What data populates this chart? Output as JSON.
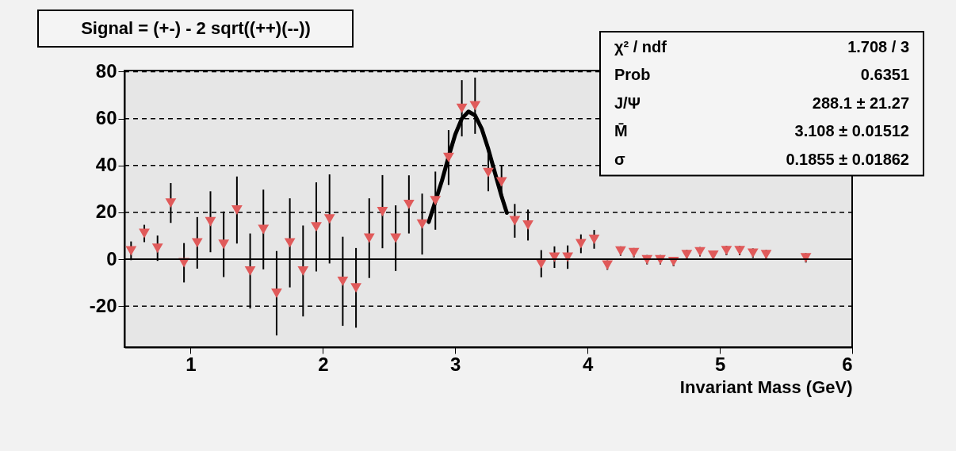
{
  "chart_data": {
    "type": "scatter",
    "title": "Signal = (+-) - 2 sqrt((++)(--))",
    "xlabel": "Invariant Mass (GeV)",
    "xlim": [
      0.5,
      6
    ],
    "xticks": [
      1,
      2,
      3,
      4,
      5,
      6
    ],
    "ylim": [
      -37.5,
      80.5
    ],
    "yticks": [
      -20,
      0,
      20,
      40,
      60,
      80
    ],
    "grid": "y",
    "legend": false,
    "ref_lines": [
      {
        "axis": "y",
        "value": 0,
        "line_style": "solid",
        "color": "#000000"
      }
    ],
    "annotations": [
      "χ² / ndf",
      "1.708 / 3",
      "Prob",
      "0.6351",
      "J/Ψ",
      "288.1 ± 21.27",
      "M̄",
      "3.108 ± 0.01512",
      "σ",
      "0.1855 ± 0.01862"
    ],
    "series": [
      {
        "color": "#e05a5a",
        "marker": "triangle",
        "x": [
          0.55,
          0.65,
          0.75,
          0.85,
          0.95,
          1.05,
          1.15,
          1.25,
          1.35,
          1.45,
          1.55,
          1.65,
          1.75,
          1.85,
          1.95,
          2.05,
          2.15,
          2.25,
          2.35,
          2.45,
          2.55,
          2.65,
          2.75,
          2.85,
          2.95,
          3.05,
          3.15,
          3.25,
          3.35,
          3.45,
          3.55,
          3.65,
          3.75,
          3.85,
          3.95,
          4.05,
          4.15,
          4.25,
          4.35,
          4.45,
          4.55,
          4.65,
          4.75,
          4.85,
          4.95,
          5.05,
          5.15,
          5.25,
          5.35,
          5.65
        ],
        "values": [
          3.6,
          11,
          4.7,
          24,
          -1.5,
          7,
          16,
          6.4,
          21,
          -5,
          12.7,
          -14.5,
          7,
          -5,
          13.8,
          17.2,
          -9.4,
          -12.2,
          9,
          20.3,
          9,
          23.4,
          15,
          25,
          43.4,
          64.4,
          65.5,
          37,
          33,
          16.4,
          14.6,
          -1.9,
          0.9,
          0.9,
          6.6,
          8.5,
          -2.5,
          3.5,
          2.8,
          -0.2,
          -0.2,
          -1,
          2,
          3.2,
          1.7,
          3.7,
          3.7,
          2.6,
          2,
          0.6
        ],
        "errors": [
          4,
          3.7,
          5.4,
          8.5,
          8.4,
          11,
          13,
          14,
          14.3,
          16,
          17,
          18,
          19,
          19.4,
          19,
          19,
          19,
          17,
          17,
          15.6,
          14,
          12.4,
          13,
          12.4,
          11.7,
          12,
          12,
          8,
          7,
          7.2,
          6.6,
          5.8,
          4.6,
          5,
          4,
          4,
          2,
          2,
          2,
          2,
          2,
          2,
          2,
          2,
          2,
          2,
          2,
          2,
          2,
          2
        ]
      },
      {
        "type": "line",
        "color": "#000000",
        "marker": "none",
        "line_style": "solid",
        "x": [
          2.8,
          2.9,
          2.95,
          3.0,
          3.05,
          3.1,
          3.15,
          3.2,
          3.25,
          3.3,
          3.35,
          3.39
        ],
        "values": [
          15.9,
          33.6,
          43.8,
          53.2,
          60,
          63,
          61.4,
          55.7,
          47,
          36.9,
          26.9,
          19.8
        ]
      }
    ]
  }
}
